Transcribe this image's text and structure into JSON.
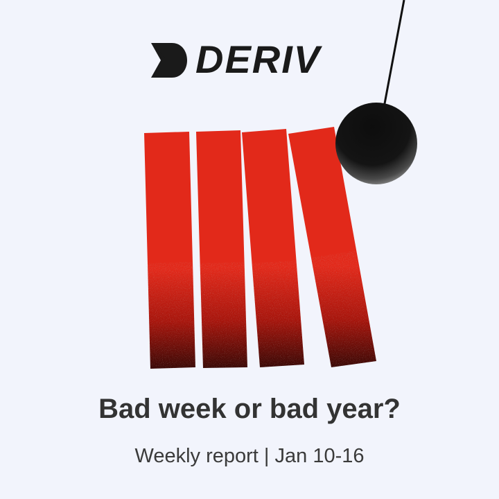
{
  "brand": {
    "name": "DERIV",
    "text_color": "#1a1a1a"
  },
  "headline": "Bad week or bad year?",
  "subtitle": "Weekly report | Jan 10-16",
  "colors": {
    "background": "#f2f4fc",
    "bar_red": "#e2291a",
    "ball_black": "#111111",
    "headline": "#333333",
    "subtitle": "#3a3a3a"
  },
  "illustration": {
    "bar_count": 4,
    "icons": [
      "deriv-logo-mark-icon",
      "wrecking-ball-icon"
    ]
  }
}
